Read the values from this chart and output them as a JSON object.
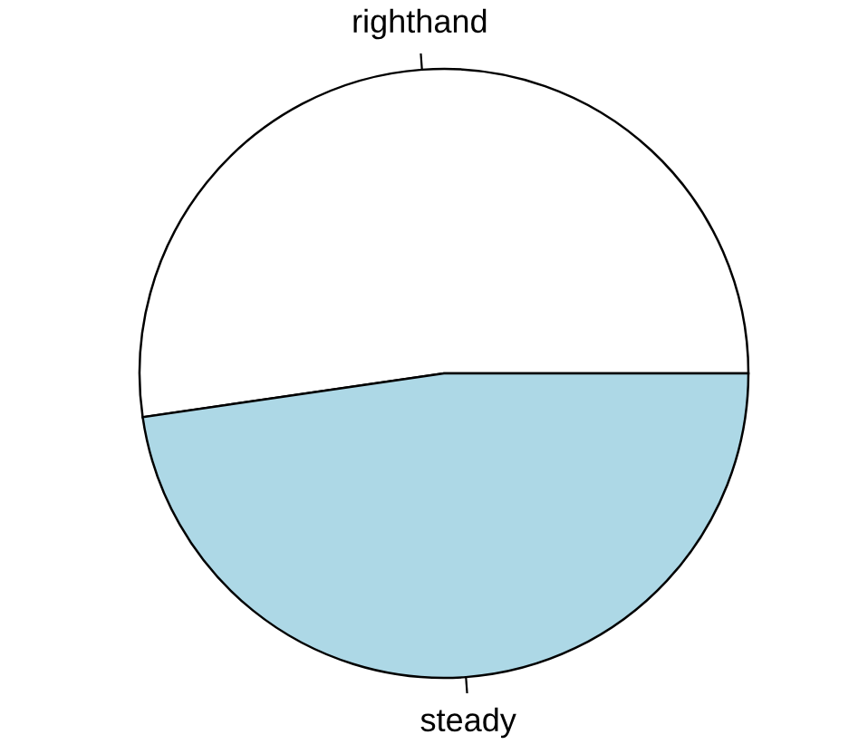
{
  "chart_data": {
    "type": "pie",
    "categories": [
      "righthand",
      "steady"
    ],
    "values": [
      52.3,
      47.7
    ],
    "colors": [
      "#ffffff",
      "#add8e6"
    ]
  }
}
